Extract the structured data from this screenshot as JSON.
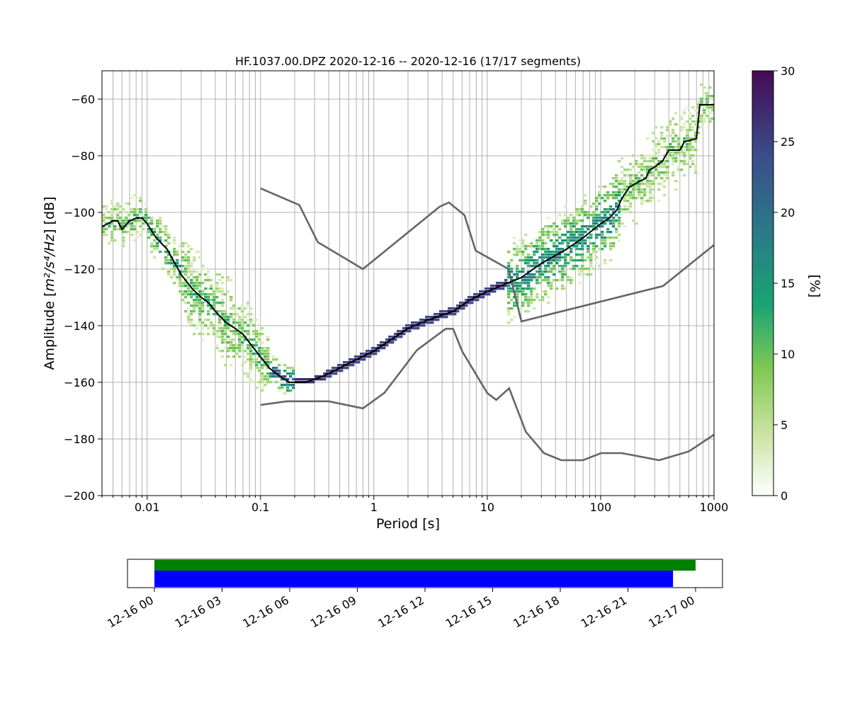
{
  "chart_data": [
    {
      "type": "heatmap",
      "title": "HF.1037.00.DPZ   2020-12-16 -- 2020-12-16  (17/17 segments)",
      "xlabel": "Period [s]",
      "ylabel_prefix": "Amplitude [",
      "ylabel_math": "m²/s⁴/Hz",
      "ylabel_suffix": "] [dB]",
      "x_scale": "log",
      "xlim": [
        0.004,
        1000
      ],
      "ylim": [
        -200,
        -50
      ],
      "x_ticks": [
        {
          "value": 0.01,
          "label": "0.01"
        },
        {
          "value": 0.1,
          "label": "0.1"
        },
        {
          "value": 1,
          "label": "1"
        },
        {
          "value": 10,
          "label": "10"
        },
        {
          "value": 100,
          "label": "100"
        },
        {
          "value": 1000,
          "label": "1000"
        }
      ],
      "y_ticks": [
        {
          "value": -60,
          "label": "−60"
        },
        {
          "value": -80,
          "label": "−80"
        },
        {
          "value": -100,
          "label": "−100"
        },
        {
          "value": -120,
          "label": "−120"
        },
        {
          "value": -140,
          "label": "−140"
        },
        {
          "value": -160,
          "label": "−160"
        },
        {
          "value": -180,
          "label": "−180"
        },
        {
          "value": -200,
          "label": "−200"
        }
      ],
      "grid": true,
      "colorbar": {
        "label": "[%]",
        "range": [
          0,
          30
        ],
        "colormap": "white-green-viridis",
        "ticks": [
          {
            "value": 0,
            "label": "0"
          },
          {
            "value": 5,
            "label": "5"
          },
          {
            "value": 10,
            "label": "10"
          },
          {
            "value": 15,
            "label": "15"
          },
          {
            "value": 20,
            "label": "20"
          },
          {
            "value": 25,
            "label": "25"
          },
          {
            "value": 30,
            "label": "30"
          }
        ]
      },
      "series": [
        {
          "kind": "median",
          "color": "#000000",
          "points": [
            [
              0.004,
              -105
            ],
            [
              0.0045,
              -104
            ],
            [
              0.005,
              -103
            ],
            [
              0.0055,
              -103
            ],
            [
              0.006,
              -106
            ],
            [
              0.007,
              -103
            ],
            [
              0.008,
              -102
            ],
            [
              0.009,
              -102
            ],
            [
              0.01,
              -104
            ],
            [
              0.012,
              -109
            ],
            [
              0.015,
              -113
            ],
            [
              0.02,
              -122
            ],
            [
              0.025,
              -127
            ],
            [
              0.03,
              -130
            ],
            [
              0.035,
              -132
            ],
            [
              0.04,
              -135
            ],
            [
              0.05,
              -139
            ],
            [
              0.06,
              -141
            ],
            [
              0.07,
              -143
            ],
            [
              0.08,
              -146
            ],
            [
              0.1,
              -151
            ],
            [
              0.12,
              -155
            ],
            [
              0.15,
              -158
            ],
            [
              0.18,
              -160
            ],
            [
              0.25,
              -160
            ],
            [
              0.35,
              -158
            ],
            [
              0.5,
              -155
            ],
            [
              0.7,
              -152
            ],
            [
              1,
              -149
            ],
            [
              2,
              -141
            ],
            [
              3,
              -138
            ],
            [
              5,
              -135
            ],
            [
              7,
              -131
            ],
            [
              10,
              -128
            ],
            [
              15,
              -125
            ],
            [
              20,
              -123
            ],
            [
              30,
              -118
            ],
            [
              50,
              -113
            ],
            [
              70,
              -109
            ],
            [
              100,
              -104
            ],
            [
              120,
              -102
            ],
            [
              140,
              -99
            ],
            [
              150,
              -96
            ],
            [
              160,
              -94
            ],
            [
              180,
              -91
            ],
            [
              200,
              -90
            ],
            [
              220,
              -89
            ],
            [
              250,
              -88
            ],
            [
              270,
              -85
            ],
            [
              300,
              -84
            ],
            [
              320,
              -83
            ],
            [
              350,
              -82
            ],
            [
              400,
              -78
            ],
            [
              500,
              -78
            ],
            [
              550,
              -75
            ],
            [
              700,
              -74
            ],
            [
              750,
              -62
            ],
            [
              1000,
              -62
            ]
          ]
        },
        {
          "kind": "nhnm",
          "color": "#666666",
          "points": [
            [
              0.1,
              -91.5
            ],
            [
              0.22,
              -97.4
            ],
            [
              0.32,
              -110.5
            ],
            [
              0.8,
              -120
            ],
            [
              3.8,
              -98
            ],
            [
              4.6,
              -96.5
            ],
            [
              6.3,
              -101
            ],
            [
              7.9,
              -113.5
            ],
            [
              15.4,
              -120
            ],
            [
              20,
              -138.5
            ],
            [
              354.8,
              -126
            ],
            [
              1000,
              -111.5
            ]
          ]
        },
        {
          "kind": "nlnm",
          "color": "#666666",
          "points": [
            [
              0.1,
              -168
            ],
            [
              0.17,
              -166.7
            ],
            [
              0.4,
              -166.7
            ],
            [
              0.8,
              -169.2
            ],
            [
              1.24,
              -163.7
            ],
            [
              2.4,
              -148.6
            ],
            [
              4.3,
              -141.1
            ],
            [
              5,
              -141.1
            ],
            [
              6,
              -149
            ],
            [
              10,
              -163.8
            ],
            [
              12,
              -166.2
            ],
            [
              15.6,
              -162.1
            ],
            [
              21.9,
              -177.5
            ],
            [
              31.6,
              -185
            ],
            [
              45,
              -187.5
            ],
            [
              70,
              -187.5
            ],
            [
              101,
              -185
            ],
            [
              154,
              -185
            ],
            [
              328,
              -187.5
            ],
            [
              600,
              -184.4
            ],
            [
              1000,
              -178.5
            ]
          ]
        }
      ],
      "heatmap_bands": [
        {
          "x": [
            0.004,
            0.0095
          ],
          "y": [
            -112,
            -96
          ],
          "level": 10
        },
        {
          "x": [
            0.0095,
            0.02
          ],
          "y": [
            -120,
            -102
          ],
          "level": 12
        },
        {
          "x": [
            0.02,
            0.06
          ],
          "y": [
            -148,
            -116
          ],
          "level": 10
        },
        {
          "x": [
            0.06,
            0.12
          ],
          "y": [
            -158,
            -132
          ],
          "level": 10
        },
        {
          "x": [
            0.12,
            0.2
          ],
          "y": [
            -161,
            -150
          ],
          "level": 20
        },
        {
          "x": [
            0.2,
            0.35
          ],
          "y": [
            -161,
            -158
          ],
          "level": 30
        },
        {
          "x": [
            0.35,
            15
          ],
          "y": [
            -158,
            -124
          ],
          "level": 30
        },
        {
          "x": [
            15,
            150
          ],
          "y": [
            -126,
            -96
          ],
          "level": 15
        },
        {
          "x": [
            150,
            700
          ],
          "y": [
            -96,
            -68
          ],
          "level": 8
        },
        {
          "x": [
            700,
            1000
          ],
          "y": [
            -68,
            -52
          ],
          "level": 8
        }
      ]
    },
    {
      "type": "timeline",
      "x_ticks": [
        {
          "label": "12-16 00"
        },
        {
          "label": "12-16 03"
        },
        {
          "label": "12-16 06"
        },
        {
          "label": "12-16 09"
        },
        {
          "label": "12-16 12"
        },
        {
          "label": "12-16 15"
        },
        {
          "label": "12-16 18"
        },
        {
          "label": "12-16 21"
        },
        {
          "label": "12-17 00"
        }
      ],
      "bars": [
        {
          "color": "#008000",
          "start_hour": 0,
          "end_hour": 24
        },
        {
          "color": "#0000ff",
          "start_hour": 0,
          "end_hour": 23
        }
      ]
    }
  ]
}
